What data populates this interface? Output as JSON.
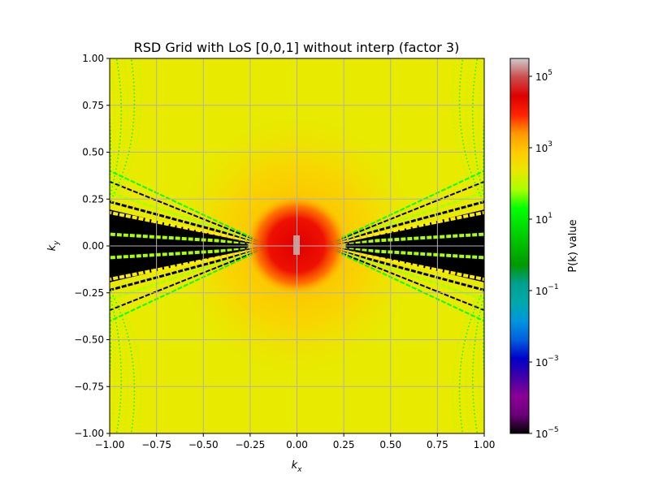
{
  "chart_data": {
    "type": "heatmap",
    "title": "RSD Grid with LoS [0,0,1] without interp (factor 3)",
    "xlabel_base": "k",
    "xlabel_sub": "x",
    "ylabel_base": "k",
    "ylabel_sub": "y",
    "xlim": [
      -1.0,
      1.0
    ],
    "ylim": [
      -1.0,
      1.0
    ],
    "grid": true,
    "x_ticks": [
      -1.0,
      -0.75,
      -0.5,
      -0.25,
      0.0,
      0.25,
      0.5,
      0.75,
      1.0
    ],
    "x_tick_labels": [
      "−1.00",
      "−0.75",
      "−0.50",
      "−0.25",
      "0.00",
      "0.25",
      "0.50",
      "0.75",
      "1.00"
    ],
    "y_ticks": [
      1.0,
      0.75,
      0.5,
      0.25,
      0.0,
      -0.25,
      -0.5,
      -0.75,
      -1.0
    ],
    "y_tick_labels": [
      "1.00",
      "0.75",
      "0.50",
      "0.25",
      "0.00",
      "−0.25",
      "−0.50",
      "−0.75",
      "−1.00"
    ],
    "colorbar": {
      "label": "P(k) value",
      "scale": "log",
      "range_exponents": [
        -5,
        5.5
      ],
      "ticks": [
        {
          "exp": 5,
          "label_base": "10",
          "label_exp": "5"
        },
        {
          "exp": 3,
          "label_base": "10",
          "label_exp": "3"
        },
        {
          "exp": 1,
          "label_base": "10",
          "label_exp": "1"
        },
        {
          "exp": -1,
          "label_base": "10",
          "label_exp": "−1"
        },
        {
          "exp": -3,
          "label_base": "10",
          "label_exp": "−3"
        },
        {
          "exp": -5,
          "label_base": "10",
          "label_exp": "−5"
        }
      ],
      "colormap": "nipy_spectral",
      "stops": [
        [
          0.0,
          "#000000"
        ],
        [
          0.05,
          "#6b007a"
        ],
        [
          0.1,
          "#8a0094"
        ],
        [
          0.15,
          "#4000a8"
        ],
        [
          0.2,
          "#0000c8"
        ],
        [
          0.25,
          "#0060dd"
        ],
        [
          0.3,
          "#0096dd"
        ],
        [
          0.35,
          "#00aaaa"
        ],
        [
          0.4,
          "#00a090"
        ],
        [
          0.45,
          "#009900"
        ],
        [
          0.5,
          "#00bb00"
        ],
        [
          0.55,
          "#00dd00"
        ],
        [
          0.6,
          "#00ff00"
        ],
        [
          0.65,
          "#aaff00"
        ],
        [
          0.7,
          "#e8e800"
        ],
        [
          0.75,
          "#ffcc00"
        ],
        [
          0.8,
          "#ff9900"
        ],
        [
          0.85,
          "#ff2200"
        ],
        [
          0.9,
          "#dd0000"
        ],
        [
          0.95,
          "#cc4c4c"
        ],
        [
          1.0,
          "#cccccc"
        ]
      ]
    }
  }
}
